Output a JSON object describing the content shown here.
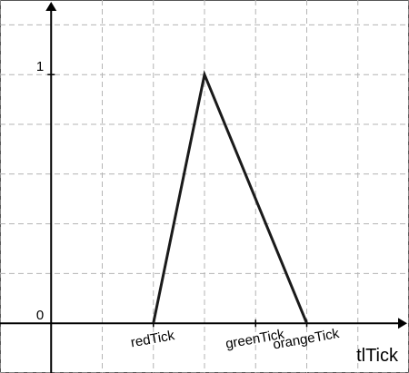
{
  "chart_data": {
    "type": "line",
    "xlabel": "tlTick",
    "ylabel": "",
    "grid": true,
    "x_ticks": [
      {
        "x": 2,
        "label": "redTick"
      },
      {
        "x": 4,
        "label": "greenTick"
      },
      {
        "x": 5,
        "label": "orangeTick"
      }
    ],
    "y_ticks": [
      {
        "y": 0,
        "label": "0"
      },
      {
        "y": 1,
        "label": "1"
      }
    ],
    "series": [
      {
        "x": [
          2,
          3,
          5
        ],
        "y": [
          0,
          1,
          0
        ]
      }
    ],
    "xlim": [
      -1,
      7
    ],
    "ylim": [
      -0.2,
      1.3
    ],
    "colors": {
      "line": "#1a1a1a",
      "grid": "#b4b4b4",
      "axis": "#000000"
    }
  }
}
